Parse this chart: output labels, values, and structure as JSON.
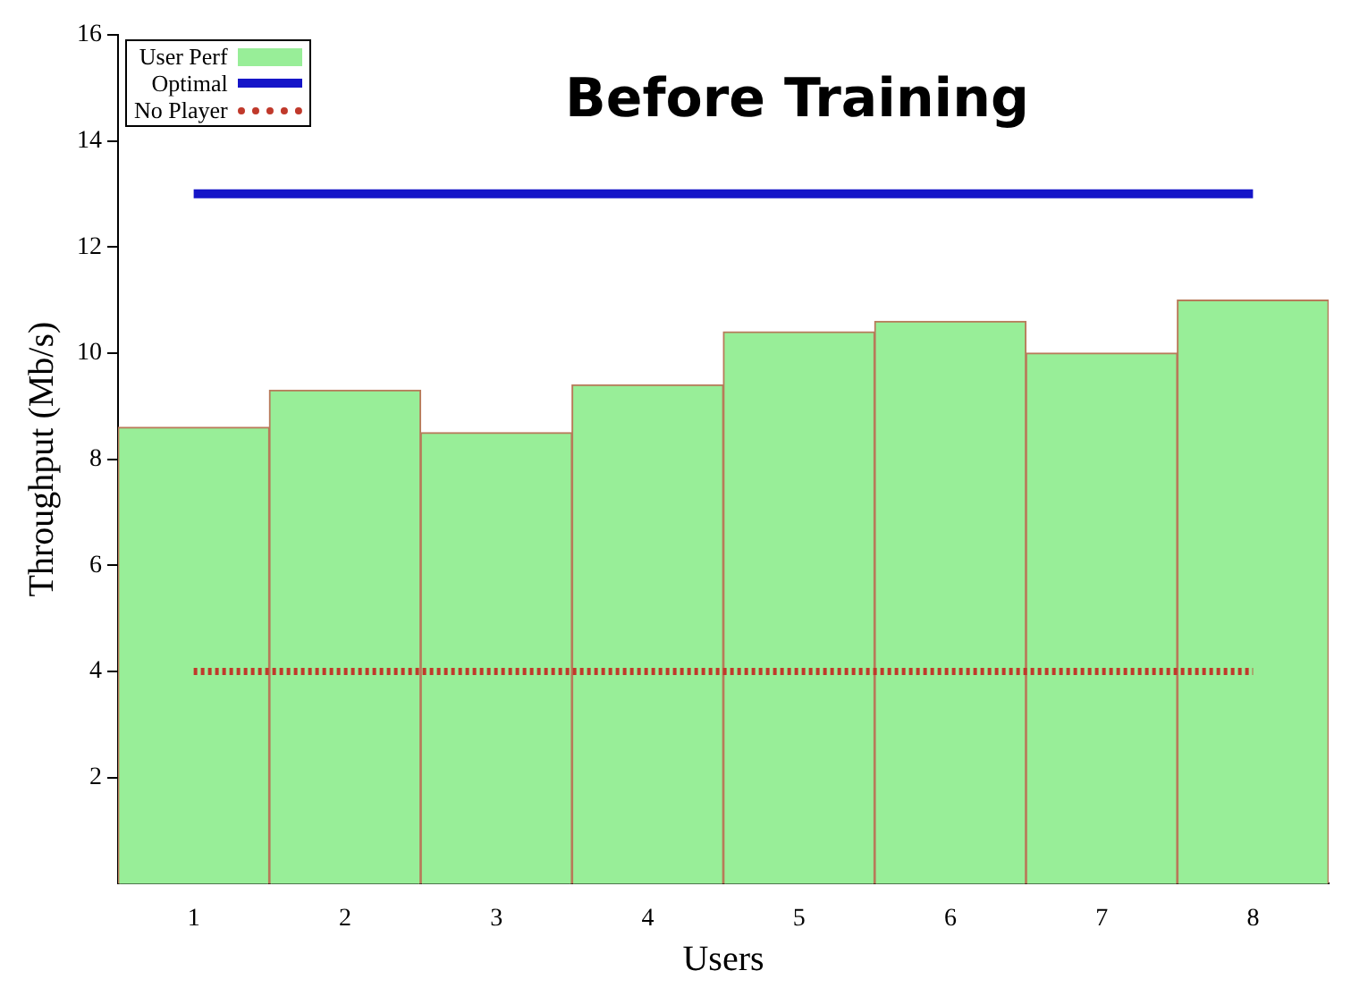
{
  "chart_data": {
    "type": "bar",
    "xlabel": "Users",
    "ylabel": "Throughput (Mb/s)",
    "categories": [
      "1",
      "2",
      "3",
      "4",
      "5",
      "6",
      "7",
      "8"
    ],
    "ylim": [
      0,
      16
    ],
    "yticks": [
      2,
      4,
      6,
      8,
      10,
      12,
      14,
      16
    ],
    "grid": false,
    "legend": "top left",
    "annotations": [
      "Before Training"
    ],
    "series": [
      {
        "name": "User Perf",
        "color": "#98ee98",
        "values": [
          8.6,
          9.3,
          8.5,
          9.4,
          10.4,
          10.6,
          10.0,
          11.0
        ]
      },
      {
        "name": "Optimal",
        "type": "line",
        "color": "#1515c8",
        "line_style": "solid",
        "values": [
          13,
          13,
          13,
          13,
          13,
          13,
          13,
          13
        ]
      },
      {
        "name": "No Player",
        "type": "line",
        "color": "#c0392b",
        "line_style": "dotted",
        "values": [
          4,
          4,
          4,
          4,
          4,
          4,
          4,
          4
        ]
      }
    ]
  }
}
